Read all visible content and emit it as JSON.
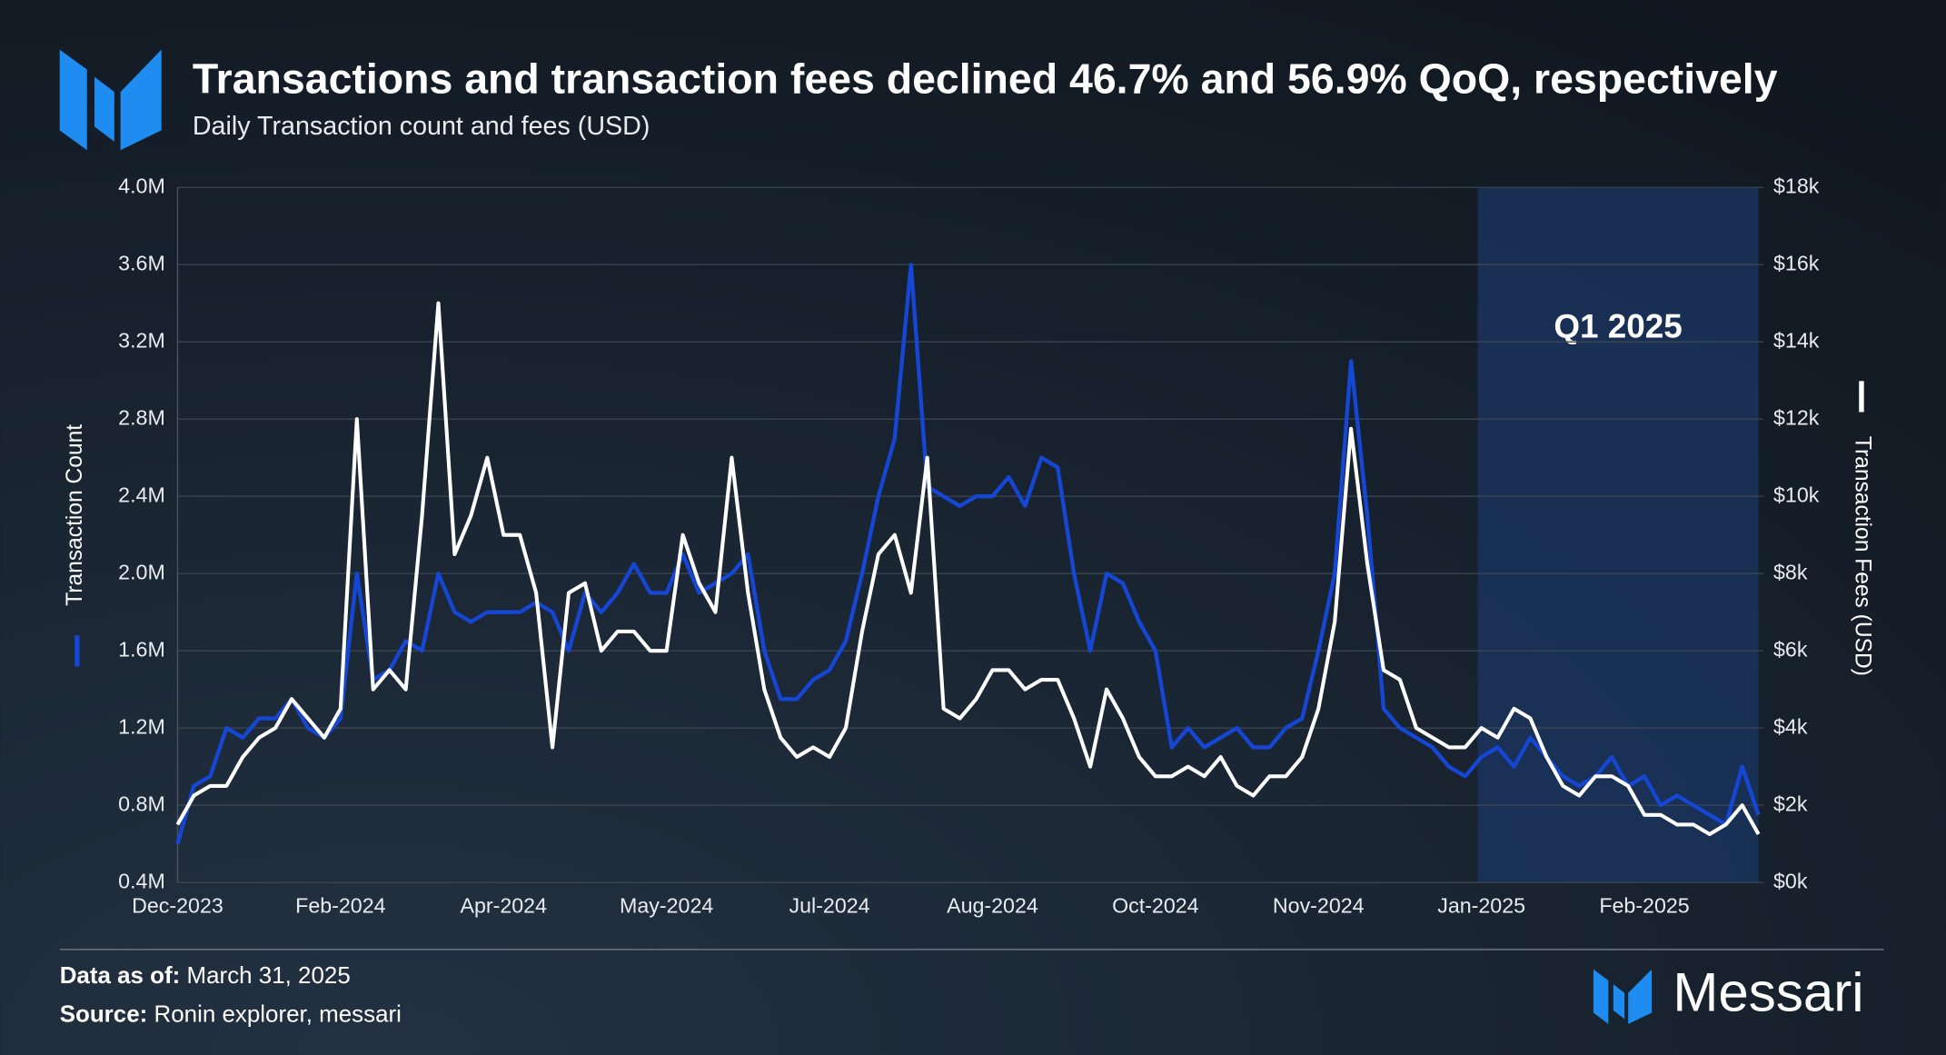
{
  "chart_data": {
    "type": "line",
    "title": "Transactions and transaction fees declined 46.7% and 56.9% QoQ, respectively",
    "subtitle": "Daily Transaction count and fees (USD)",
    "ylabel": "Transaction Count",
    "y2label": "Transaction Fees (USD)",
    "categories": [
      "Dec-2023",
      null,
      null,
      null,
      null,
      null,
      null,
      null,
      null,
      null,
      "Feb-2024",
      null,
      null,
      null,
      null,
      null,
      null,
      null,
      null,
      null,
      "Apr-2024",
      null,
      null,
      null,
      null,
      null,
      null,
      null,
      null,
      null,
      "May-2024",
      null,
      null,
      null,
      null,
      null,
      null,
      null,
      null,
      null,
      "Jul-2024",
      null,
      null,
      null,
      null,
      null,
      null,
      null,
      null,
      null,
      "Aug-2024",
      null,
      null,
      null,
      null,
      null,
      null,
      null,
      null,
      null,
      "Oct-2024",
      null,
      null,
      null,
      null,
      null,
      null,
      null,
      null,
      null,
      "Nov-2024",
      null,
      null,
      null,
      null,
      null,
      null,
      null,
      null,
      null,
      "Jan-2025",
      null,
      null,
      null,
      null,
      null,
      null,
      null,
      null,
      null,
      "Feb-2025",
      null,
      null,
      null,
      null,
      null,
      null,
      null
    ],
    "series": [
      {
        "name": "Transaction Count",
        "color": "#1546d4",
        "axis": "y",
        "values": [
          600000,
          900000,
          950000,
          1200000,
          1150000,
          1250000,
          1250000,
          1350000,
          1200000,
          1150000,
          1250000,
          2000000,
          1450000,
          1500000,
          1650000,
          1600000,
          2000000,
          1800000,
          1750000,
          1800000,
          1800000,
          1800000,
          1850000,
          1800000,
          1600000,
          1900000,
          1800000,
          1900000,
          2050000,
          1900000,
          1900000,
          2100000,
          1900000,
          1950000,
          2000000,
          2100000,
          1600000,
          1350000,
          1350000,
          1450000,
          1500000,
          1650000,
          2000000,
          2400000,
          2700000,
          3600000,
          2450000,
          2400000,
          2350000,
          2400000,
          2400000,
          2500000,
          2350000,
          2600000,
          2550000,
          2000000,
          1600000,
          2000000,
          1950000,
          1750000,
          1600000,
          1100000,
          1200000,
          1100000,
          1150000,
          1200000,
          1100000,
          1100000,
          1200000,
          1250000,
          1600000,
          2000000,
          3100000,
          2300000,
          1300000,
          1200000,
          1150000,
          1100000,
          1000000,
          950000,
          1050000,
          1100000,
          1000000,
          1150000,
          1050000,
          950000,
          900000,
          950000,
          1050000,
          900000,
          950000,
          800000,
          850000,
          800000,
          750000,
          700000,
          1000000,
          750000
        ]
      },
      {
        "name": "Transaction Fees (USD)",
        "color": "#ffffff",
        "axis": "y2",
        "values": [
          1500,
          2250,
          2500,
          2500,
          3250,
          3750,
          4000,
          4750,
          4250,
          3750,
          4500,
          12000,
          5000,
          5500,
          5000,
          9500,
          15000,
          8500,
          9500,
          11000,
          9000,
          9000,
          7500,
          3500,
          7500,
          7750,
          6000,
          6500,
          6500,
          6000,
          6000,
          9000,
          7750,
          7000,
          11000,
          7500,
          5000,
          3750,
          3250,
          3500,
          3250,
          4000,
          6500,
          8500,
          9000,
          7500,
          11000,
          4500,
          4250,
          4750,
          5500,
          5500,
          5000,
          5250,
          5250,
          4250,
          3000,
          5000,
          4250,
          3250,
          2750,
          2750,
          3000,
          2750,
          3250,
          2500,
          2250,
          2750,
          2750,
          3250,
          4500,
          6750,
          11750,
          8250,
          5500,
          5250,
          4000,
          3750,
          3500,
          3500,
          4000,
          3750,
          4500,
          4250,
          3250,
          2500,
          2250,
          2750,
          2750,
          2500,
          1750,
          1750,
          1500,
          1500,
          1250,
          1500,
          2000,
          1250
        ]
      }
    ],
    "ylim": [
      400000,
      4000000
    ],
    "yticks": [
      {
        "value": 400000,
        "label": "0.4M"
      },
      {
        "value": 800000,
        "label": "0.8M"
      },
      {
        "value": 1200000,
        "label": "1.2M"
      },
      {
        "value": 1600000,
        "label": "1.6M"
      },
      {
        "value": 2000000,
        "label": "2.0M"
      },
      {
        "value": 2400000,
        "label": "2.4M"
      },
      {
        "value": 2800000,
        "label": "2.8M"
      },
      {
        "value": 3200000,
        "label": "3.2M"
      },
      {
        "value": 3600000,
        "label": "3.6M"
      },
      {
        "value": 4000000,
        "label": "4.0M"
      }
    ],
    "y2lim": [
      0,
      18000
    ],
    "y2ticks": [
      {
        "value": 0,
        "label": "$0k"
      },
      {
        "value": 2000,
        "label": "$2k"
      },
      {
        "value": 4000,
        "label": "$4k"
      },
      {
        "value": 6000,
        "label": "$6k"
      },
      {
        "value": 8000,
        "label": "$8k"
      },
      {
        "value": 10000,
        "label": "$10k"
      },
      {
        "value": 12000,
        "label": "$12k"
      },
      {
        "value": 14000,
        "label": "$14k"
      },
      {
        "value": 16000,
        "label": "$16k"
      },
      {
        "value": 18000,
        "label": "$18k"
      }
    ],
    "grid": true,
    "highlight": {
      "label": "Q1 2025",
      "start": "Jan-2025",
      "color": "#1b3563"
    }
  },
  "footer": {
    "date_label": "Data as of:",
    "date": "March 31, 2025",
    "source_label": "Source:",
    "source": "Ronin explorer, messari",
    "brand": "Messari"
  }
}
